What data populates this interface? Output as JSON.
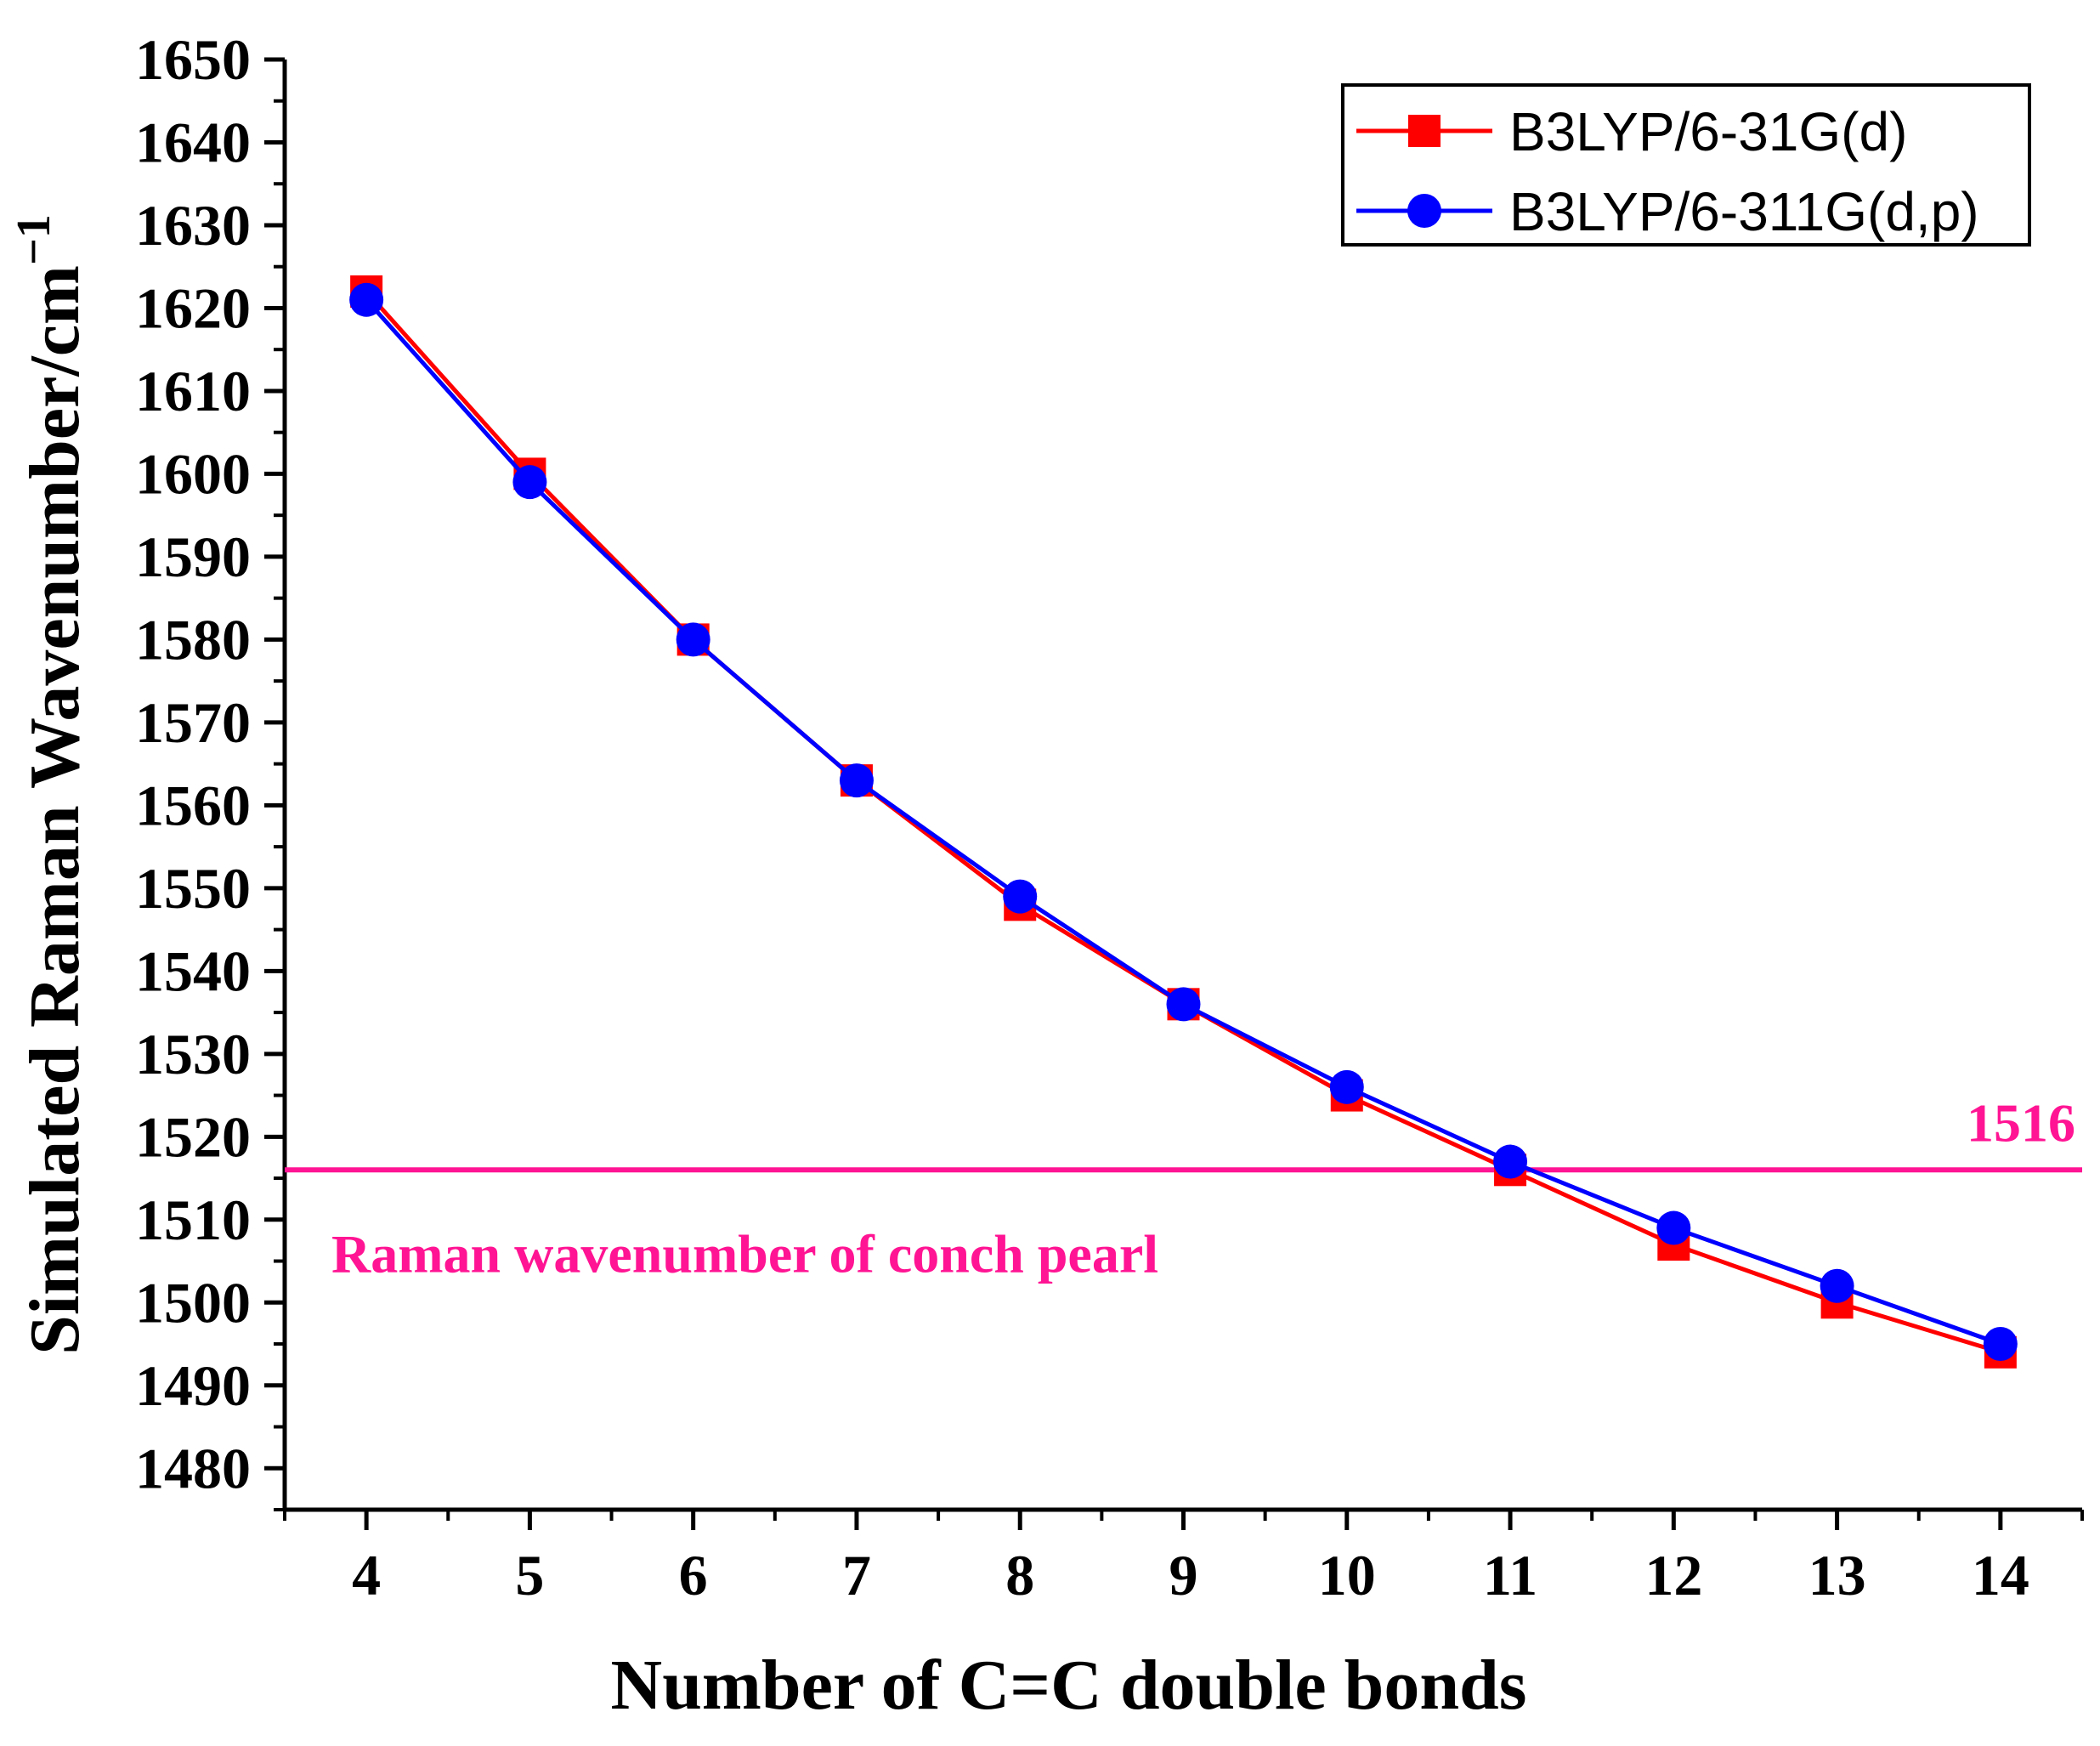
{
  "chart_data": {
    "type": "line",
    "xlabel": "Number of C=C double bonds",
    "ylabel": "Simulated Raman Wavenumber/cm",
    "ylabel_sup": "−1",
    "xlim": [
      3.5,
      14.5
    ],
    "ylim": [
      1475,
      1650
    ],
    "xticks": [
      4,
      5,
      6,
      7,
      8,
      9,
      10,
      11,
      12,
      13,
      14
    ],
    "yticks": [
      1480,
      1490,
      1500,
      1510,
      1520,
      1530,
      1540,
      1550,
      1560,
      1570,
      1580,
      1590,
      1600,
      1610,
      1620,
      1630,
      1640,
      1650
    ],
    "x": [
      4,
      5,
      6,
      7,
      8,
      9,
      10,
      11,
      12,
      13,
      14
    ],
    "series": [
      {
        "name": "B3LYP/6-31G(d)",
        "color": "#ff0000",
        "marker": "square",
        "values": [
          1622,
          1600,
          1580,
          1563,
          1548,
          1536,
          1525,
          1516,
          1507,
          1500,
          1494
        ]
      },
      {
        "name": "B3LYP/6-311G(d,p)",
        "color": "#0000ff",
        "marker": "circle",
        "values": [
          1621,
          1599,
          1580,
          1563,
          1549,
          1536,
          1526,
          1517,
          1509,
          1502,
          1495
        ]
      }
    ],
    "reference_line": {
      "value": 1516,
      "value_label": "1516",
      "label": "Raman wavenumber of conch pearl",
      "color": "#ff1493"
    },
    "legend_position": "top-right",
    "grid": false
  }
}
